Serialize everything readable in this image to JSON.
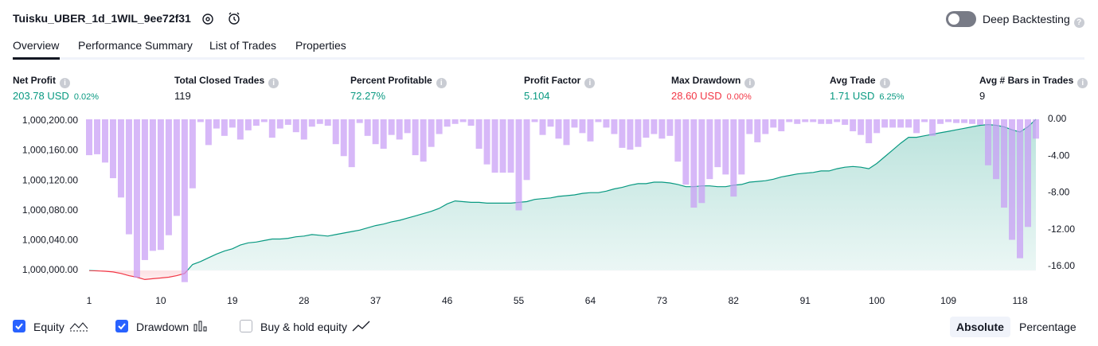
{
  "header": {
    "title": "Tuisku_UBER_1d_1WIL_9ee72f31",
    "deep_backtesting": "Deep Backtesting"
  },
  "tabs": [
    "Overview",
    "Performance Summary",
    "List of Trades",
    "Properties"
  ],
  "metrics": [
    {
      "label": "Net Profit",
      "value": "203.78 USD",
      "percent": "0.02%",
      "color": "#089981"
    },
    {
      "label": "Total Closed Trades",
      "value": "119",
      "color": "#131722"
    },
    {
      "label": "Percent Profitable",
      "value": "72.27%",
      "color": "#089981"
    },
    {
      "label": "Profit Factor",
      "value": "5.104",
      "color": "#089981"
    },
    {
      "label": "Max Drawdown",
      "value": "28.60 USD",
      "percent": "0.00%",
      "color": "#f23645"
    },
    {
      "label": "Avg Trade",
      "value": "1.71 USD",
      "percent": "6.25%",
      "color": "#089981"
    },
    {
      "label": "Avg # Bars in Trades",
      "value": "9",
      "color": "#131722"
    }
  ],
  "chart_data": {
    "type": "line",
    "x": [
      1,
      2,
      3,
      4,
      5,
      6,
      7,
      8,
      9,
      10,
      11,
      12,
      13,
      14,
      15,
      16,
      17,
      18,
      19,
      20,
      21,
      22,
      23,
      24,
      25,
      26,
      27,
      28,
      29,
      30,
      31,
      32,
      33,
      34,
      35,
      36,
      37,
      38,
      39,
      40,
      41,
      42,
      43,
      44,
      45,
      46,
      47,
      48,
      49,
      50,
      51,
      52,
      53,
      54,
      55,
      56,
      57,
      58,
      59,
      60,
      61,
      62,
      63,
      64,
      65,
      66,
      67,
      68,
      69,
      70,
      71,
      72,
      73,
      74,
      75,
      76,
      77,
      78,
      79,
      80,
      81,
      82,
      83,
      84,
      85,
      86,
      87,
      88,
      89,
      90,
      91,
      92,
      93,
      94,
      95,
      96,
      97,
      98,
      99,
      100,
      101,
      102,
      103,
      104,
      105,
      106,
      107,
      108,
      109,
      110,
      111,
      112,
      113,
      114,
      115,
      116,
      117,
      118,
      119,
      120
    ],
    "xlim": [
      1,
      120
    ],
    "xticks": [
      1,
      10,
      19,
      28,
      37,
      46,
      55,
      64,
      73,
      82,
      91,
      100,
      109,
      118
    ],
    "ylim": [
      999982,
      1000202
    ],
    "yticks": [
      {
        "value": 1000000,
        "label": "1,000,000.00"
      },
      {
        "value": 1000040,
        "label": "1,000,040.00"
      },
      {
        "value": 1000080,
        "label": "1,000,080.00"
      },
      {
        "value": 1000120,
        "label": "1,000,120.00"
      },
      {
        "value": 1000160,
        "label": "1,000,160.00"
      },
      {
        "value": 1000200,
        "label": "1,000,200.00"
      }
    ],
    "y2lim": [
      -17.9,
      0
    ],
    "y2ticks": [
      {
        "value": 0,
        "label": "0.00"
      },
      {
        "value": -4,
        "label": "-4.00"
      },
      {
        "value": -8,
        "label": "-8.00"
      },
      {
        "value": -12,
        "label": "-12.00"
      },
      {
        "value": -16,
        "label": "-16.00"
      }
    ],
    "series": [
      {
        "name": "Equity",
        "type": "area",
        "color": "#089981",
        "negative_color": "#f23645",
        "checked": true,
        "values": [
          1000000,
          999999.5,
          999999,
          999998,
          999996,
          999993,
          999991,
          999988,
          999989,
          999990,
          999991,
          999993,
          999996,
          1000008,
          1000012,
          1000017,
          1000022,
          1000026,
          1000029,
          1000034,
          1000037,
          1000038,
          1000040,
          1000042,
          1000042,
          1000043,
          1000045,
          1000046,
          1000048,
          1000047,
          1000046,
          1000048,
          1000050,
          1000052,
          1000054,
          1000057,
          1000060,
          1000062,
          1000065,
          1000067,
          1000070,
          1000073,
          1000076,
          1000079,
          1000083,
          1000089,
          1000093,
          1000092,
          1000091,
          1000091,
          1000090,
          1000090,
          1000090,
          1000090,
          1000091,
          1000092,
          1000095,
          1000096,
          1000097,
          1000099,
          1000100,
          1000101,
          1000103,
          1000104,
          1000104,
          1000106,
          1000109,
          1000111,
          1000114,
          1000116,
          1000116,
          1000118,
          1000118,
          1000117,
          1000115,
          1000112,
          1000112,
          1000113,
          1000113,
          1000112,
          1000112,
          1000114,
          1000115,
          1000118,
          1000119,
          1000120,
          1000122,
          1000125,
          1000127,
          1000129,
          1000130,
          1000131,
          1000133,
          1000133,
          1000136,
          1000138,
          1000139,
          1000138,
          1000136,
          1000143,
          1000152,
          1000161,
          1000170,
          1000178,
          1000178,
          1000180,
          1000182,
          1000184,
          1000186,
          1000188,
          1000190,
          1000192,
          1000194,
          1000195,
          1000194,
          1000192,
          1000188,
          1000185,
          1000192,
          1000202
        ]
      },
      {
        "name": "Drawdown",
        "type": "bar",
        "axis": "y2",
        "color": "#c79cf5",
        "checked": true,
        "values": [
          -3.9,
          -3.8,
          -4.7,
          -6.4,
          -8.5,
          -12.5,
          -17.2,
          -15.3,
          -14.3,
          -14.2,
          -12.6,
          -10.5,
          -17.7,
          -7.5,
          -0.3,
          -2.8,
          -1.0,
          -1.8,
          -0.9,
          -2.2,
          -1.2,
          -0.7,
          -0.3,
          -2.0,
          -1.0,
          -0.6,
          -1.4,
          -2.2,
          -0.8,
          -0.5,
          -0.7,
          -2.7,
          -4.0,
          -5.2,
          -0.4,
          -1.8,
          -2.7,
          -3.2,
          -1.7,
          -2.2,
          -1.5,
          -3.9,
          -4.6,
          -3.0,
          -1.6,
          -0.8,
          -0.5,
          -0.3,
          -0.7,
          -3.2,
          -4.9,
          -5.8,
          -5.8,
          -5.8,
          -9.9,
          -6.6,
          -0.3,
          -1.7,
          -0.8,
          -2.1,
          -2.8,
          -0.9,
          -1.5,
          -2.4,
          -0.3,
          -0.9,
          -1.6,
          -3.1,
          -3.3,
          -3.0,
          -2.0,
          -1.6,
          -2.1,
          -1.8,
          -4.6,
          -7.1,
          -9.6,
          -9.1,
          -6.5,
          -5.2,
          -6.0,
          -8.4,
          -6.0,
          -1.6,
          -2.5,
          -1.6,
          -0.9,
          -1.3,
          -0.3,
          -0.5,
          -0.3,
          -0.3,
          -0.5,
          -0.5,
          -0.3,
          -0.6,
          -1.3,
          -1.7,
          -2.6,
          -1.5,
          -0.9,
          -0.9,
          -0.9,
          -0.9,
          -1.5,
          -0.3,
          -1.8,
          -0.5,
          -0.3,
          -0.4,
          -0.4,
          -0.5,
          -0.6,
          -5.0,
          -6.5,
          -9.6,
          -13.1,
          -15.1,
          -11.7,
          -2.1
        ]
      }
    ]
  },
  "options": [
    {
      "label": "Buy & hold equity",
      "checked": false
    }
  ],
  "modes": [
    "Absolute",
    "Percentage"
  ]
}
